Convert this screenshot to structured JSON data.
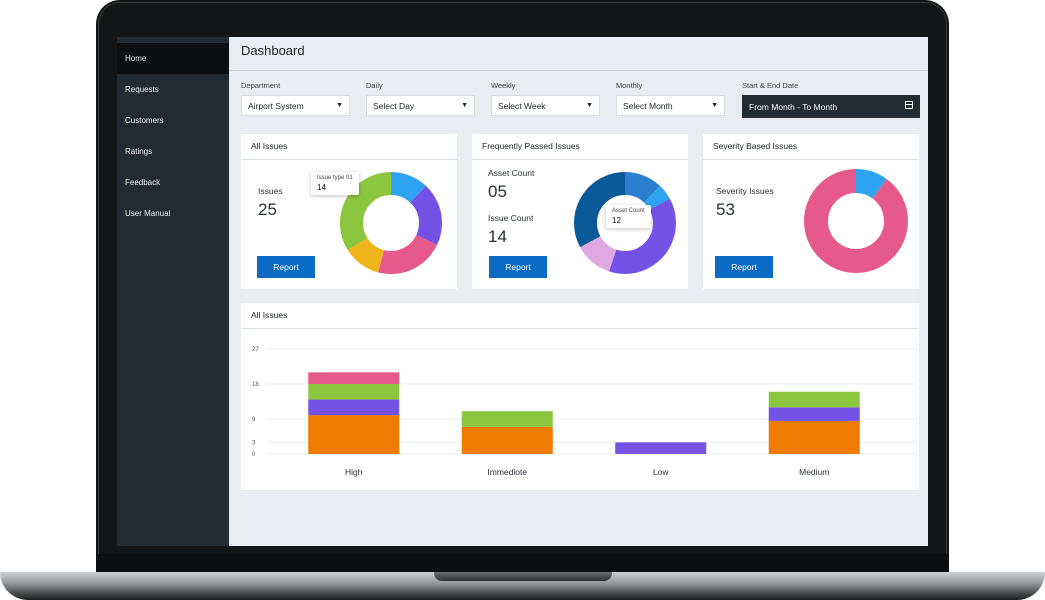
{
  "sidebar": {
    "items": [
      {
        "label": "Home",
        "active": true
      },
      {
        "label": "Requests"
      },
      {
        "label": "Customers"
      },
      {
        "label": "Ratings"
      },
      {
        "label": "Feedback"
      },
      {
        "label": "User Manual"
      }
    ]
  },
  "header": {
    "title": "Dashboard"
  },
  "filters": {
    "department": {
      "label": "Department",
      "value": "Airport System"
    },
    "daily": {
      "label": "Daily",
      "value": "Select Day"
    },
    "weekly": {
      "label": "Weekly",
      "value": "Select Week"
    },
    "monthly": {
      "label": "Monthly",
      "value": "Select Month"
    },
    "date_range": {
      "label": "Start & End Date",
      "value": "From Month  - To Month"
    }
  },
  "cards": {
    "all_issues": {
      "title": "All Issues",
      "stat_label": "Issues",
      "stat_value": "25",
      "button": "Report",
      "tooltip": {
        "label": "Issue type 01",
        "value": "14"
      }
    },
    "frequently_passed": {
      "title": "Frequently Passed Issues",
      "stat1_label": "Asset Count",
      "stat1_value": "05",
      "stat2_label": "Issue Count",
      "stat2_value": "14",
      "button": "Report",
      "tooltip": {
        "label": "Asset Count",
        "value": "12"
      }
    },
    "severity": {
      "title": "Severity Based Issues",
      "stat_label": "Severity Issues",
      "stat_value": "53",
      "button": "Report"
    }
  },
  "colors": {
    "orange": "#ef7b00",
    "purple": "#7452e6",
    "green": "#8cc63f",
    "pink": "#e55a8a",
    "yellow": "#f1b51c",
    "blue": "#2ea3f2",
    "navy": "#0b5a97",
    "mid_blue": "#2c7fd0",
    "lavender": "#e0a8e0",
    "button": "#0c6bc4",
    "sidebar": "#222b32"
  },
  "donuts": {
    "all_issues": [
      {
        "color": "#2ea3f2",
        "fraction": 0.12
      },
      {
        "color": "#7452e6",
        "fraction": 0.2
      },
      {
        "color": "#e55a8a",
        "fraction": 0.22
      },
      {
        "color": "#f1b51c",
        "fraction": 0.12
      },
      {
        "color": "#8cc63f",
        "fraction": 0.34
      }
    ],
    "frequently_passed": [
      {
        "color": "#2c7fd0",
        "fraction": 0.12
      },
      {
        "color": "#2ea3f2",
        "fraction": 0.05
      },
      {
        "color": "#7452e6",
        "fraction": 0.38
      },
      {
        "color": "#e0a8e0",
        "fraction": 0.12
      },
      {
        "color": "#0b5a97",
        "fraction": 0.33
      }
    ],
    "severity": [
      {
        "color": "#2ea3f2",
        "fraction": 0.1
      },
      {
        "color": "#e55a8a",
        "fraction": 0.9
      }
    ]
  },
  "chart_data": {
    "type": "bar",
    "stacked": true,
    "title": "All Issues",
    "categories": [
      "High",
      "Immediote",
      "Low",
      "Medium"
    ],
    "yticks": [
      0,
      3,
      9,
      18,
      27
    ],
    "ylim": [
      0,
      27
    ],
    "grid": true,
    "series": [
      {
        "color": "#ef7b00",
        "values": [
          10,
          7,
          0,
          8.5
        ]
      },
      {
        "color": "#7452e6",
        "values": [
          4,
          0,
          3,
          3.5
        ]
      },
      {
        "color": "#8cc63f",
        "values": [
          4,
          4,
          0,
          4
        ]
      },
      {
        "color": "#e55a8a",
        "values": [
          3,
          0,
          0,
          0
        ]
      }
    ]
  }
}
